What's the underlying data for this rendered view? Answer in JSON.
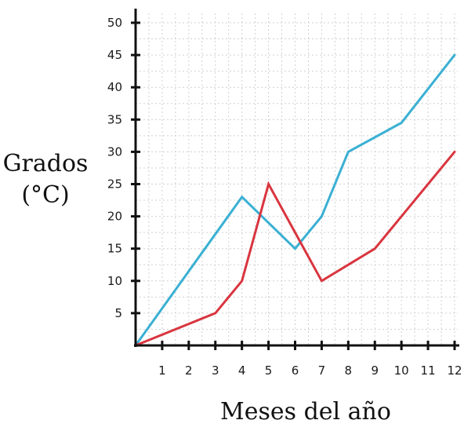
{
  "chart_data": {
    "type": "line",
    "ylabel_lines": [
      "Grados",
      "(°C)"
    ],
    "xlabel": "Meses del año",
    "xlim": [
      0,
      12
    ],
    "ylim": [
      0,
      50
    ],
    "x_ticks": [
      1,
      2,
      3,
      4,
      5,
      6,
      7,
      8,
      9,
      10,
      11,
      12
    ],
    "y_ticks": [
      5,
      10,
      15,
      20,
      25,
      30,
      35,
      40,
      45,
      50
    ],
    "grid": true,
    "series": [
      {
        "color": "#3ab0d3",
        "points": [
          [
            0,
            0
          ],
          [
            4,
            23
          ],
          [
            6,
            15
          ],
          [
            7,
            20
          ],
          [
            8,
            30
          ],
          [
            10,
            34.5
          ],
          [
            12,
            45
          ]
        ]
      },
      {
        "color": "#d9353f",
        "points": [
          [
            0,
            0
          ],
          [
            3,
            5
          ],
          [
            4,
            10
          ],
          [
            5,
            25
          ],
          [
            7,
            10
          ],
          [
            9,
            15
          ],
          [
            12,
            30
          ]
        ]
      }
    ]
  }
}
